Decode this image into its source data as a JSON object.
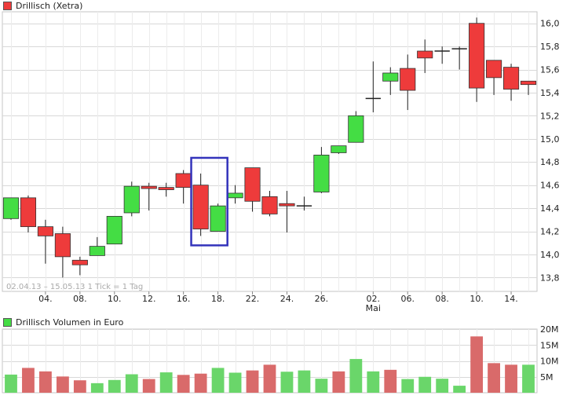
{
  "legend_price": "Drillisch (Xetra)",
  "legend_volume": "Drillisch Volumen in Euro",
  "info_range": "02.04.13 – 15.05.13",
  "info_tick": "1 Tick = 1 Tag",
  "colors": {
    "up": "#44dd44",
    "down": "#ee3b3b",
    "vol_up": "#6ad66a",
    "vol_down": "#d96a6a",
    "grid": "#d8d8d8",
    "frame": "#c6c6c6",
    "highlight_box": "#3333bb"
  },
  "chart_data": [
    {
      "type": "candlestick",
      "title": "Drillisch (Xetra)",
      "ylim": [
        13.68,
        16.1
      ],
      "yticks": [
        "16,0",
        "15,8",
        "15,6",
        "15,4",
        "15,2",
        "15,0",
        "14,8",
        "14,6",
        "14,4",
        "14,2",
        "14,0",
        "13,8"
      ],
      "ytick_values": [
        16.0,
        15.8,
        15.6,
        15.4,
        15.2,
        15.0,
        14.8,
        14.6,
        14.4,
        14.2,
        14.0,
        13.8
      ],
      "xticks": [
        {
          "label": "04.",
          "day": "04.04.13"
        },
        {
          "label": "08.",
          "day": "08.04.13"
        },
        {
          "label": "10.",
          "day": "10.04.13"
        },
        {
          "label": "12.",
          "day": "12.04.13"
        },
        {
          "label": "16.",
          "day": "16.04.13"
        },
        {
          "label": "18.",
          "day": "18.04.13"
        },
        {
          "label": "22.",
          "day": "22.04.13"
        },
        {
          "label": "24.",
          "day": "24.04.13"
        },
        {
          "label": "26.",
          "day": "26.04.13"
        },
        {
          "label": "02.",
          "sublabel": "Mai",
          "day": "02.05.13"
        },
        {
          "label": "06.",
          "day": "06.05.13"
        },
        {
          "label": "08.",
          "day": "08.05.13"
        },
        {
          "label": "10.",
          "day": "10.05.13"
        },
        {
          "label": "14.",
          "day": "14.05.13"
        }
      ],
      "days": [
        "02.04.13",
        "03.04.13",
        "04.04.13",
        "05.04.13",
        "08.04.13",
        "09.04.13",
        "10.04.13",
        "11.04.13",
        "12.04.13",
        "15.04.13",
        "16.04.13",
        "17.04.13",
        "18.04.13",
        "19.04.13",
        "22.04.13",
        "23.04.13",
        "24.04.13",
        "25.04.13",
        "26.04.13",
        "29.04.13",
        "30.04.13",
        "02.05.13",
        "03.05.13",
        "06.05.13",
        "07.05.13",
        "08.05.13",
        "09.05.13",
        "10.05.13",
        "13.05.13",
        "14.05.13",
        "15.05.13"
      ],
      "open": [
        14.31,
        14.49,
        14.24,
        14.18,
        13.95,
        13.99,
        14.09,
        14.36,
        14.59,
        14.58,
        14.7,
        14.6,
        14.2,
        14.49,
        14.75,
        14.5,
        14.44,
        14.42,
        14.54,
        14.88,
        14.97,
        15.35,
        15.5,
        15.61,
        15.76,
        15.76,
        15.78,
        16.0,
        15.68,
        15.62,
        15.5
      ],
      "high": [
        14.49,
        14.51,
        14.3,
        14.24,
        13.98,
        14.15,
        14.33,
        14.63,
        14.62,
        14.62,
        14.73,
        14.7,
        14.44,
        14.6,
        14.75,
        14.55,
        14.55,
        14.5,
        14.93,
        14.94,
        15.24,
        15.67,
        15.62,
        15.73,
        15.86,
        15.8,
        15.8,
        16.05,
        15.68,
        15.65,
        15.5
      ],
      "low": [
        14.3,
        14.19,
        13.92,
        13.8,
        13.82,
        13.99,
        14.09,
        14.33,
        14.38,
        14.5,
        14.44,
        14.16,
        14.2,
        14.44,
        14.37,
        14.33,
        14.19,
        14.38,
        14.53,
        14.87,
        14.97,
        15.23,
        15.38,
        15.25,
        15.57,
        15.65,
        15.6,
        15.32,
        15.38,
        15.33,
        15.38
      ],
      "close": [
        14.49,
        14.24,
        14.16,
        13.98,
        13.91,
        14.07,
        14.33,
        14.59,
        14.57,
        14.56,
        14.58,
        14.22,
        14.42,
        14.53,
        14.46,
        14.35,
        14.42,
        14.42,
        14.86,
        14.94,
        15.2,
        15.35,
        15.57,
        15.42,
        15.7,
        15.76,
        15.78,
        15.44,
        15.53,
        15.43,
        15.47
      ],
      "highlight_days": [
        "17.04.13",
        "18.04.13"
      ]
    },
    {
      "type": "bar",
      "title": "Drillisch Volumen in Euro",
      "ylim": [
        0,
        20
      ],
      "yunit": "M",
      "yticks": [
        "20M",
        "15M",
        "10M",
        "5M"
      ],
      "ytick_values": [
        20,
        15,
        10,
        5
      ],
      "values": [
        5.7,
        7.8,
        6.7,
        5.1,
        3.9,
        3.0,
        4.0,
        5.8,
        4.3,
        6.4,
        5.6,
        6.0,
        7.8,
        6.3,
        7.0,
        8.8,
        6.6,
        7.0,
        4.4,
        6.7,
        10.6,
        6.7,
        7.2,
        4.3,
        5.0,
        4.4,
        2.2,
        17.7,
        9.3,
        8.8,
        8.8
      ],
      "up": [
        true,
        false,
        false,
        false,
        false,
        true,
        true,
        true,
        false,
        true,
        false,
        false,
        true,
        true,
        false,
        false,
        true,
        true,
        true,
        false,
        true,
        true,
        false,
        true,
        true,
        true,
        true,
        false,
        false,
        false,
        true
      ]
    }
  ]
}
